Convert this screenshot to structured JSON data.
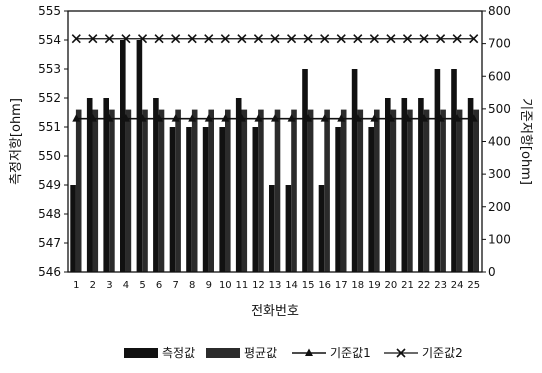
{
  "chart_data": {
    "type": "bar",
    "categories": [
      "1",
      "2",
      "3",
      "4",
      "5",
      "6",
      "7",
      "8",
      "9",
      "10",
      "11",
      "12",
      "13",
      "14",
      "15",
      "16",
      "17",
      "18",
      "19",
      "20",
      "21",
      "22",
      "23",
      "24",
      "25"
    ],
    "xlabel": "전화번호",
    "ylabel": "측정저항[ohm]",
    "y2label": "기준저항[ohm]",
    "ylim": [
      546,
      555
    ],
    "y2lim": [
      0,
      800
    ],
    "yticks": [
      "546",
      "547",
      "548",
      "549",
      "550",
      "551",
      "552",
      "553",
      "554",
      "555"
    ],
    "y2ticks": [
      "0",
      "100",
      "200",
      "300",
      "400",
      "500",
      "600",
      "700",
      "800"
    ],
    "grid": false,
    "legend_position": "bottom",
    "series": [
      {
        "name": "측정값",
        "type": "bar",
        "axis": "left",
        "color": "#111111",
        "values": [
          549,
          552,
          552,
          554,
          554,
          552,
          551,
          551,
          551,
          551,
          552,
          551,
          549,
          549,
          553,
          549,
          551,
          553,
          551,
          552,
          552,
          552,
          553,
          553,
          552
        ]
      },
      {
        "name": "평균값",
        "type": "bar",
        "axis": "left",
        "color": "#2b2b2b",
        "values": [
          551.6,
          551.6,
          551.6,
          551.6,
          551.6,
          551.6,
          551.6,
          551.6,
          551.6,
          551.6,
          551.6,
          551.6,
          551.6,
          551.6,
          551.6,
          551.6,
          551.6,
          551.6,
          551.6,
          551.6,
          551.6,
          551.6,
          551.6,
          551.6,
          551.6
        ]
      },
      {
        "name": "기준값1",
        "type": "line",
        "marker": "triangle",
        "axis": "right",
        "color": "#111111",
        "values": [
          470,
          470,
          470,
          470,
          470,
          470,
          470,
          470,
          470,
          470,
          470,
          470,
          470,
          470,
          470,
          470,
          470,
          470,
          470,
          470,
          470,
          470,
          470,
          470,
          470
        ]
      },
      {
        "name": "기준값2",
        "type": "line",
        "marker": "x",
        "axis": "right",
        "color": "#111111",
        "values": [
          715,
          715,
          715,
          715,
          715,
          715,
          715,
          715,
          715,
          715,
          715,
          715,
          715,
          715,
          715,
          715,
          715,
          715,
          715,
          715,
          715,
          715,
          715,
          715,
          715
        ]
      }
    ]
  }
}
